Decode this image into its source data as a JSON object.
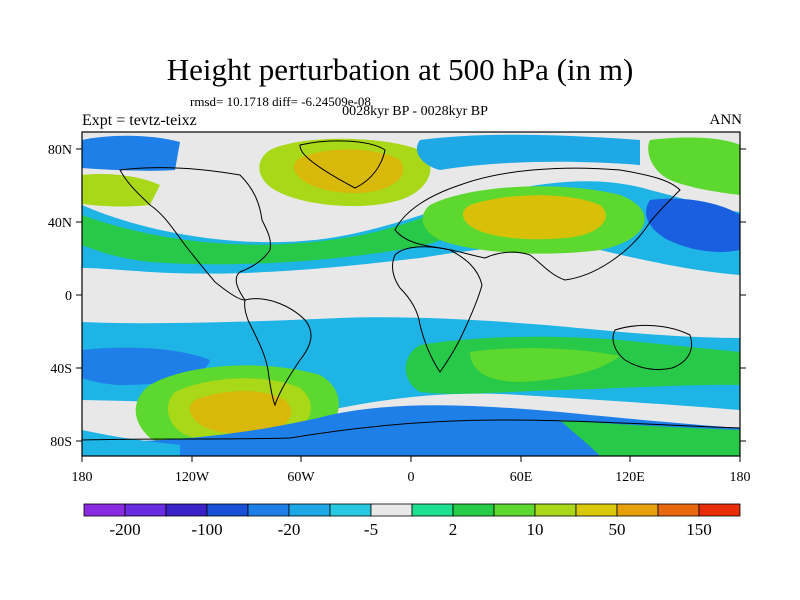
{
  "header": {
    "title": "Height perturbation at 500 hPa (in m)",
    "stats": "rmsd= 10.1718  diff= -6.24509e-08",
    "subtitle": "0028kyr BP - 0028kyr BP",
    "left_label": "Expt = tevtz-teixz",
    "right_label": "ANN"
  },
  "axes": {
    "lat_ticks": [
      "80N",
      "40N",
      "0",
      "40S",
      "80S"
    ],
    "lon_ticks": [
      "180",
      "120W",
      "60W",
      "0",
      "60E",
      "120E",
      "180"
    ]
  },
  "colorbar": {
    "labels": [
      "-200",
      "-100",
      "-20",
      "-5",
      "2",
      "10",
      "50",
      "150"
    ],
    "colors": [
      "#8a2be2",
      "#6a2ce0",
      "#3a22c8",
      "#1a4fd8",
      "#1e7fe8",
      "#1ea8e6",
      "#28c8e0",
      "#e8e8e8",
      "#1ee090",
      "#26cc48",
      "#5cd82e",
      "#a8d818",
      "#d8c808",
      "#e8a008",
      "#e86810",
      "#e82e08"
    ]
  }
}
